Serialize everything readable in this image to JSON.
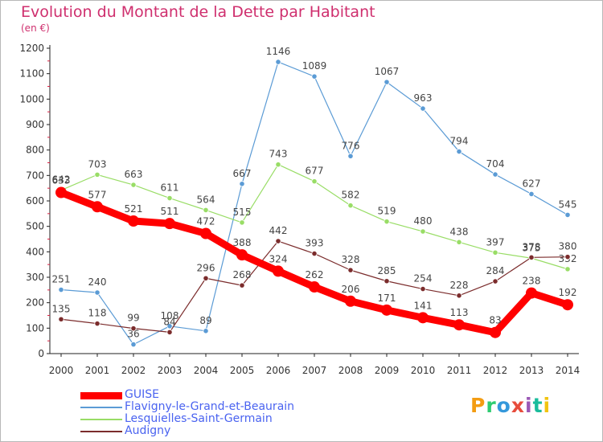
{
  "header": {
    "title": "Evolution du Montant de la Dette par Habitant",
    "subtitle": "(en €)"
  },
  "logo": {
    "text": "Proxiti",
    "colors": [
      "#f39c12",
      "#2ecc71",
      "#3498db",
      "#e74c3c",
      "#9b59b6",
      "#1abc9c",
      "#f1c40f"
    ]
  },
  "chart_data": {
    "type": "line",
    "title": "Evolution du Montant de la Dette par Habitant",
    "ylabel": "(en €)",
    "xlabel": "",
    "x": [
      "2000",
      "2001",
      "2002",
      "2003",
      "2004",
      "2005",
      "2006",
      "2007",
      "2008",
      "2009",
      "2010",
      "2011",
      "2012",
      "2013",
      "2014"
    ],
    "ylim": [
      0,
      1200
    ],
    "yticks": [
      0,
      100,
      200,
      300,
      400,
      500,
      600,
      700,
      800,
      900,
      1000,
      1100,
      1200
    ],
    "grid": false,
    "legend_position": "bottom-left",
    "series": [
      {
        "name": "GUISE",
        "color": "#ff0000",
        "values": [
          633,
          577,
          521,
          511,
          472,
          388,
          324,
          262,
          206,
          171,
          141,
          113,
          83,
          238,
          192
        ]
      },
      {
        "name": "Flavigny-le-Grand-et-Beaurain",
        "color": "#5b9bd5",
        "values": [
          251,
          240,
          36,
          108,
          89,
          667,
          1146,
          1089,
          776,
          1067,
          963,
          794,
          704,
          627,
          545
        ]
      },
      {
        "name": "Lesquielles-Saint-Germain",
        "color": "#99dd66",
        "values": [
          642,
          703,
          663,
          611,
          564,
          515,
          743,
          677,
          582,
          519,
          480,
          438,
          397,
          375,
          332
        ]
      },
      {
        "name": "Audigny",
        "color": "#7b2c2c",
        "values": [
          135,
          118,
          99,
          84,
          296,
          268,
          442,
          393,
          328,
          285,
          254,
          228,
          284,
          378,
          380
        ]
      }
    ]
  }
}
